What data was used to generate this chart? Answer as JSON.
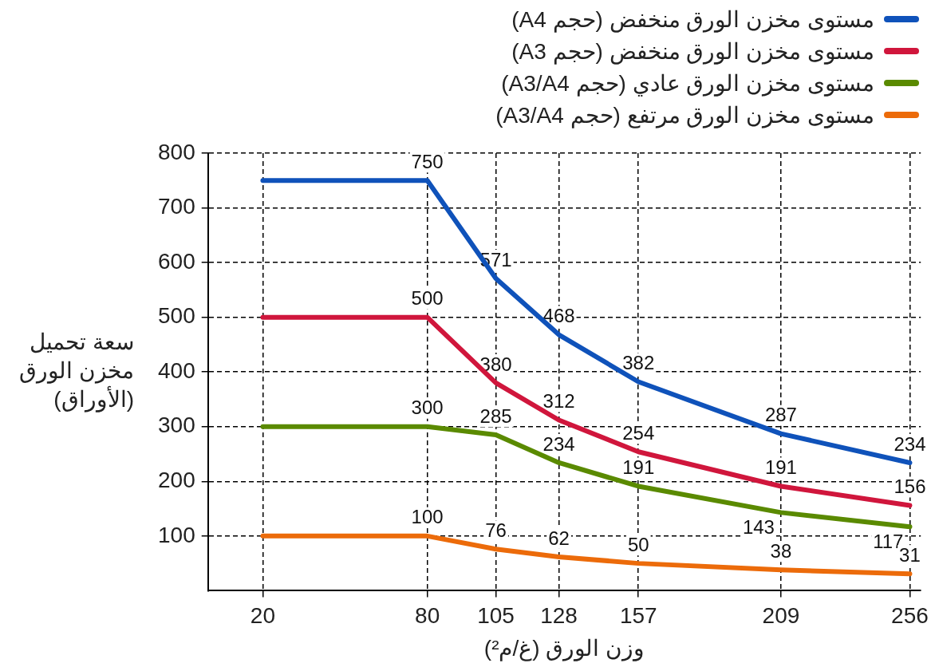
{
  "chart_data": {
    "type": "line",
    "xlabel": "وزن الورق (غ/م²)",
    "ylabel": "سعة تحميل مخزن الورق (الأوراق)",
    "x": [
      20,
      80,
      105,
      128,
      157,
      209,
      256
    ],
    "xlim": [
      0,
      260
    ],
    "xticks": [
      20,
      80,
      105,
      128,
      157,
      209,
      256
    ],
    "ylim": [
      0,
      800
    ],
    "yticks": [
      100,
      200,
      300,
      400,
      500,
      600,
      700,
      800
    ],
    "grid": true,
    "legend": "top right",
    "marker": "none",
    "line_style": "solid",
    "series": [
      {
        "name": "مستوى مخزن الورق منخفض (حجم A4)",
        "color": "#0f52ba",
        "values": [
          750,
          750,
          571,
          468,
          382,
          287,
          234
        ],
        "value_labels": [
          null,
          "750",
          "571",
          "468",
          "382",
          "287",
          "234"
        ]
      },
      {
        "name": "مستوى مخزن الورق منخفض (حجم A3)",
        "color": "#d0163c",
        "values": [
          500,
          500,
          380,
          312,
          254,
          191,
          156
        ],
        "value_labels": [
          null,
          "500",
          "380",
          "312",
          "254",
          "191",
          "156"
        ]
      },
      {
        "name": "مستوى مخزن الورق عادي (حجم A3/A4)",
        "color": "#5a8a00",
        "values": [
          300,
          300,
          285,
          234,
          191,
          143,
          117
        ],
        "value_labels": [
          null,
          "300",
          "285",
          "234",
          "191",
          "143",
          "117"
        ]
      },
      {
        "name": "مستوى مخزن الورق مرتفع (حجم A3/A4)",
        "color": "#ec6b0a",
        "values": [
          100,
          100,
          76,
          62,
          50,
          38,
          31
        ],
        "value_labels": [
          null,
          "100",
          "76",
          "62",
          "50",
          "38",
          "31"
        ]
      }
    ]
  }
}
